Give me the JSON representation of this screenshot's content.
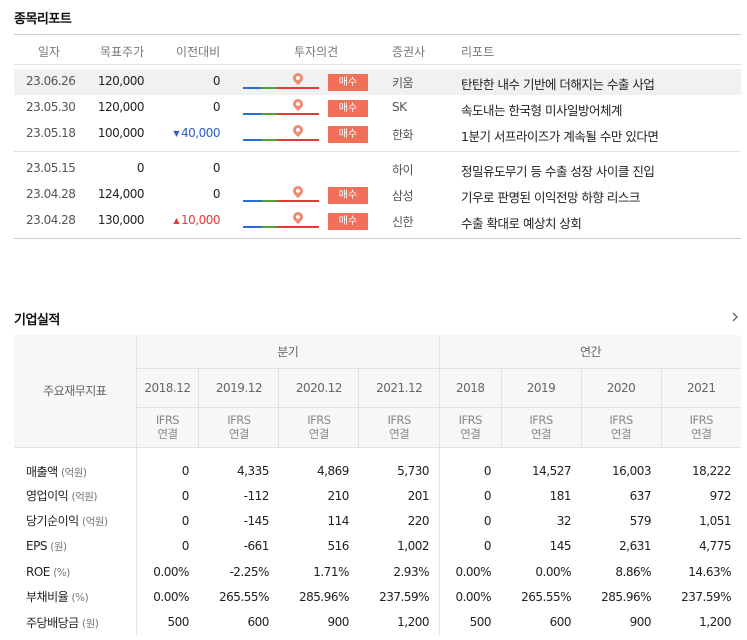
{
  "report_section": {
    "title": "종목리포트",
    "headers": {
      "date": "일자",
      "target": "목표주가",
      "diff": "이전대비",
      "opinion": "투자의견",
      "broker": "증권사",
      "report": "리포트"
    },
    "groups": [
      [
        {
          "date": "23.06.26",
          "target": "120,000",
          "diff": "0",
          "diff_dir": "",
          "has_opinion": true,
          "opinion": "매수",
          "broker": "키움",
          "title": "탄탄한 내수 기반에 더해지는 수출 사업",
          "highlight": true
        },
        {
          "date": "23.05.30",
          "target": "120,000",
          "diff": "0",
          "diff_dir": "",
          "has_opinion": true,
          "opinion": "매수",
          "broker": "SK",
          "title": "속도내는 한국형 미사일방어체계",
          "highlight": false
        },
        {
          "date": "23.05.18",
          "target": "100,000",
          "diff": "40,000",
          "diff_dir": "down",
          "has_opinion": true,
          "opinion": "매수",
          "broker": "한화",
          "title": "1분기 서프라이즈가 계속될 수만 있다면",
          "highlight": false
        }
      ],
      [
        {
          "date": "23.05.15",
          "target": "0",
          "diff": "0",
          "diff_dir": "",
          "has_opinion": false,
          "opinion": "",
          "broker": "하이",
          "title": "정밀유도무기 등 수출 성장 사이클 진입",
          "highlight": false
        },
        {
          "date": "23.04.28",
          "target": "124,000",
          "diff": "0",
          "diff_dir": "",
          "has_opinion": true,
          "opinion": "매수",
          "broker": "삼성",
          "title": "기우로 판명된 이익전망 하향 리스크",
          "highlight": false
        },
        {
          "date": "23.04.28",
          "target": "130,000",
          "diff": "10,000",
          "diff_dir": "up",
          "has_opinion": true,
          "opinion": "매수",
          "broker": "신한",
          "title": "수출 확대로 예상치 상회",
          "highlight": false
        }
      ]
    ],
    "colors": {
      "badge": "#f2705a",
      "up": "#e43b3b",
      "down": "#2d5cc8"
    }
  },
  "financial_section": {
    "title": "기업실적",
    "more_icon": "chevron-right-icon",
    "row_header": "주요재무지표",
    "quarter_label": "분기",
    "annual_label": "연간",
    "quarter_years": [
      "2018.12",
      "2019.12",
      "2020.12",
      "2021.12"
    ],
    "annual_years": [
      "2018",
      "2019",
      "2020",
      "2021"
    ],
    "ifrs_line1": "IFRS",
    "ifrs_line2": "연결",
    "rows": [
      {
        "label": "매출액",
        "unit": "(억원)",
        "q": [
          "0",
          "4,335",
          "4,869",
          "5,730"
        ],
        "a": [
          "0",
          "14,527",
          "16,003",
          "18,222"
        ]
      },
      {
        "label": "영업이익",
        "unit": "(억원)",
        "q": [
          "0",
          "-112",
          "210",
          "201"
        ],
        "a": [
          "0",
          "181",
          "637",
          "972"
        ]
      },
      {
        "label": "당기순이익",
        "unit": "(억원)",
        "q": [
          "0",
          "-145",
          "114",
          "220"
        ],
        "a": [
          "0",
          "32",
          "579",
          "1,051"
        ]
      },
      {
        "label": "EPS",
        "unit": "(원)",
        "q": [
          "0",
          "-661",
          "516",
          "1,002"
        ],
        "a": [
          "0",
          "145",
          "2,631",
          "4,775"
        ]
      },
      {
        "label": "ROE",
        "unit": "(%)",
        "q": [
          "0.00%",
          "-2.25%",
          "1.71%",
          "2.93%"
        ],
        "a": [
          "0.00%",
          "0.00%",
          "8.86%",
          "14.63%"
        ]
      },
      {
        "label": "부채비율",
        "unit": "(%)",
        "q": [
          "0.00%",
          "265.55%",
          "285.96%",
          "237.59%"
        ],
        "a": [
          "0.00%",
          "265.55%",
          "285.96%",
          "237.59%"
        ]
      },
      {
        "label": "주당배당금",
        "unit": "(원)",
        "q": [
          "500",
          "600",
          "900",
          "1,200"
        ],
        "a": [
          "500",
          "600",
          "900",
          "1,200"
        ]
      }
    ]
  }
}
